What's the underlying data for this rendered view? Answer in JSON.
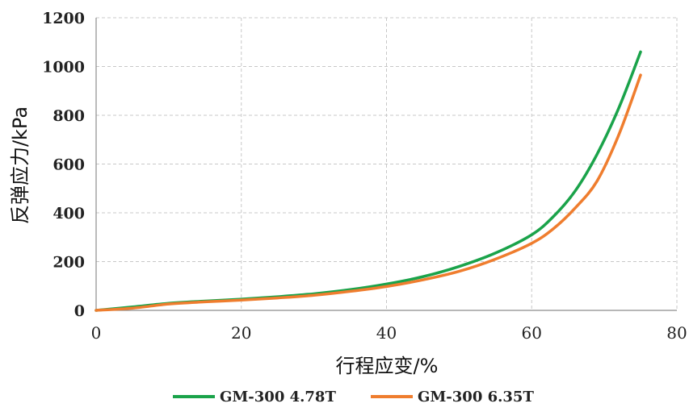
{
  "chart_data": {
    "type": "line",
    "title": "",
    "xlabel": "行程应变/%",
    "ylabel": "反弹应力/kPa",
    "xlim": [
      0,
      80
    ],
    "ylim": [
      0,
      1200
    ],
    "x_ticks": [
      "0",
      "20",
      "40",
      "60",
      "80"
    ],
    "y_ticks": [
      "0",
      "200",
      "400",
      "600",
      "800",
      "1000",
      "1200"
    ],
    "grid": true,
    "legend_position": "bottom",
    "series": [
      {
        "name": "GM-300 4.78T",
        "color": "#1aa34a",
        "x": [
          0,
          5,
          10,
          15,
          20,
          25,
          30,
          35,
          40,
          45,
          50,
          55,
          60,
          63,
          66,
          69,
          72,
          75
        ],
        "y": [
          0,
          14,
          29,
          38,
          46,
          56,
          68,
          85,
          108,
          138,
          180,
          235,
          310,
          385,
          490,
          640,
          830,
          1060
        ]
      },
      {
        "name": "GM-300 6.35T",
        "color": "#ef7d2e",
        "x": [
          0,
          5,
          10,
          15,
          20,
          25,
          30,
          35,
          40,
          45,
          50,
          55,
          60,
          63,
          66,
          69,
          72,
          75
        ],
        "y": [
          0,
          9,
          26,
          35,
          42,
          51,
          62,
          78,
          98,
          125,
          160,
          210,
          275,
          335,
          420,
          530,
          720,
          965
        ]
      }
    ]
  }
}
